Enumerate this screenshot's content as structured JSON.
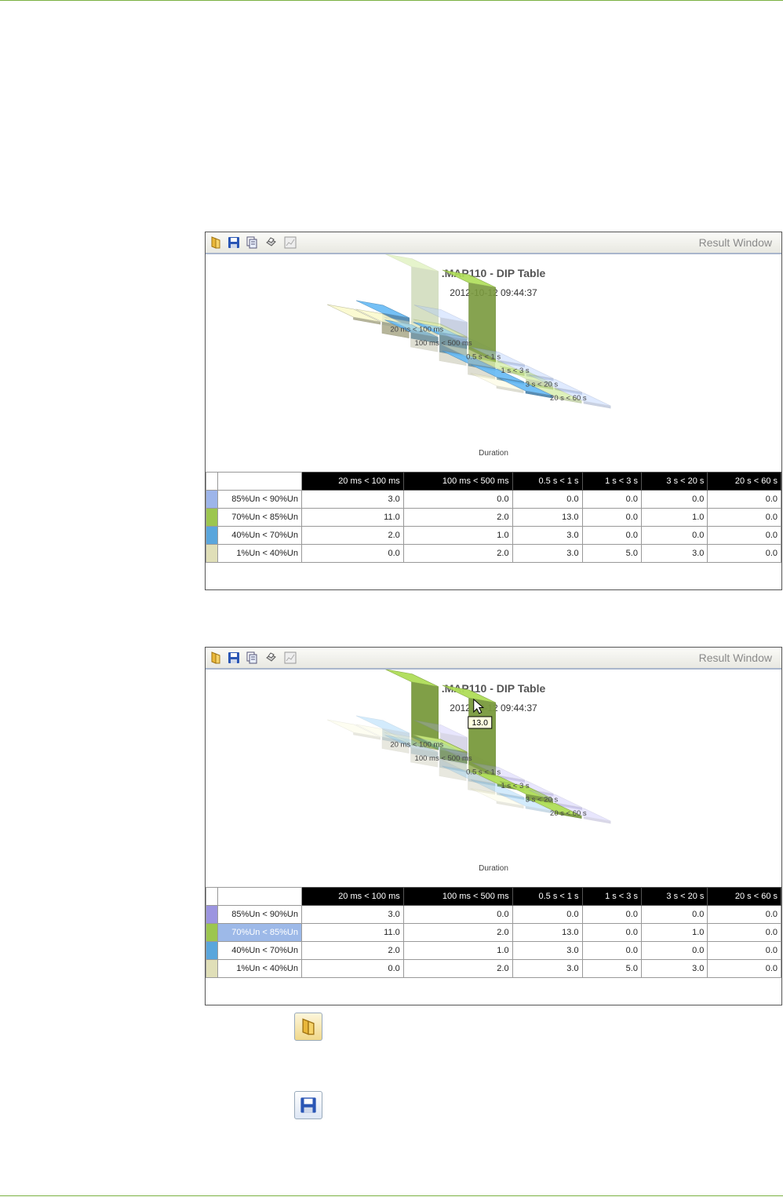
{
  "windows": [
    {
      "toolbar": {
        "title": "Result Window",
        "icons": [
          "open-icon",
          "save-icon",
          "copy-icon",
          "print-icon",
          "export-icon"
        ]
      },
      "chart": {
        "title": ".MAP110 - DIP Table",
        "subtitle": "2012-10-12 09:44:37",
        "axis_label": "Duration",
        "tooltip": ""
      },
      "table": {
        "headers": [
          "20 ms < 100 ms",
          "100 ms < 500 ms",
          "0.5 s < 1 s",
          "1 s < 3 s",
          "3 s < 20 s",
          "20 s < 60 s"
        ],
        "rows": [
          {
            "label": "85%Un < 90%Un",
            "swatch": "#9db5ea",
            "values": [
              "3.0",
              "0.0",
              "0.0",
              "0.0",
              "0.0",
              "0.0"
            ]
          },
          {
            "label": "70%Un < 85%Un",
            "swatch": "#9cc64f",
            "values": [
              "11.0",
              "2.0",
              "13.0",
              "0.0",
              "1.0",
              "0.0"
            ]
          },
          {
            "label": "40%Un < 70%Un",
            "swatch": "#5aa6dc",
            "values": [
              "2.0",
              "1.0",
              "3.0",
              "0.0",
              "0.0",
              "0.0"
            ]
          },
          {
            "label": "1%Un < 40%Un",
            "swatch": "#e0dfb8",
            "values": [
              "0.0",
              "2.0",
              "3.0",
              "5.0",
              "3.0",
              "0.0"
            ]
          }
        ],
        "selected_row": -1
      }
    },
    {
      "toolbar": {
        "title": "Result Window",
        "icons": [
          "open-icon",
          "save-icon",
          "copy-icon",
          "print-icon",
          "export-icon"
        ]
      },
      "chart": {
        "title": ".MAP110 - DIP Table",
        "subtitle": "2012-10-12 09:44:37",
        "axis_label": "Duration",
        "tooltip": "13.0"
      },
      "table": {
        "headers": [
          "20 ms < 100 ms",
          "100 ms < 500 ms",
          "0.5 s < 1 s",
          "1 s < 3 s",
          "3 s < 20 s",
          "20 s < 60 s"
        ],
        "rows": [
          {
            "label": "85%Un < 90%Un",
            "swatch": "#9c95e0",
            "values": [
              "3.0",
              "0.0",
              "0.0",
              "0.0",
              "0.0",
              "0.0"
            ]
          },
          {
            "label": "70%Un < 85%Un",
            "swatch": "#9cc64f",
            "values": [
              "11.0",
              "2.0",
              "13.0",
              "0.0",
              "1.0",
              "0.0"
            ]
          },
          {
            "label": "40%Un < 70%Un",
            "swatch": "#5aa6dc",
            "values": [
              "2.0",
              "1.0",
              "3.0",
              "0.0",
              "0.0",
              "0.0"
            ]
          },
          {
            "label": "1%Un < 40%Un",
            "swatch": "#e0dfb8",
            "values": [
              "0.0",
              "2.0",
              "3.0",
              "5.0",
              "3.0",
              "0.0"
            ]
          }
        ],
        "selected_row": 1
      }
    }
  ],
  "chart_data": [
    {
      "type": "bar",
      "title": ".MAP110 - DIP Table",
      "subtitle": "2012-10-12 09:44:37",
      "xlabel": "Duration",
      "categories": [
        "20 ms < 100 ms",
        "100 ms < 500 ms",
        "0.5 s < 1 s",
        "1 s < 3 s",
        "3 s < 20 s",
        "20 s < 60 s"
      ],
      "series": [
        {
          "name": "85%Un < 90%Un",
          "values": [
            3.0,
            0.0,
            0.0,
            0.0,
            0.0,
            0.0
          ]
        },
        {
          "name": "70%Un < 85%Un",
          "values": [
            11.0,
            2.0,
            13.0,
            0.0,
            1.0,
            0.0
          ]
        },
        {
          "name": "40%Un < 70%Un",
          "values": [
            2.0,
            1.0,
            3.0,
            0.0,
            0.0,
            0.0
          ]
        },
        {
          "name": "1%Un < 40%Un",
          "values": [
            0.0,
            2.0,
            3.0,
            5.0,
            3.0,
            0.0
          ]
        }
      ],
      "highlight_series": -1
    },
    {
      "type": "bar",
      "title": ".MAP110 - DIP Table",
      "subtitle": "2012-10-12 09:44:37",
      "xlabel": "Duration",
      "categories": [
        "20 ms < 100 ms",
        "100 ms < 500 ms",
        "0.5 s < 1 s",
        "1 s < 3 s",
        "3 s < 20 s",
        "20 s < 60 s"
      ],
      "series": [
        {
          "name": "85%Un < 90%Un",
          "values": [
            3.0,
            0.0,
            0.0,
            0.0,
            0.0,
            0.0
          ]
        },
        {
          "name": "70%Un < 85%Un",
          "values": [
            11.0,
            2.0,
            13.0,
            0.0,
            1.0,
            0.0
          ]
        },
        {
          "name": "40%Un < 70%Un",
          "values": [
            2.0,
            1.0,
            3.0,
            0.0,
            0.0,
            0.0
          ]
        },
        {
          "name": "1%Un < 40%Un",
          "values": [
            0.0,
            2.0,
            3.0,
            5.0,
            3.0,
            0.0
          ]
        }
      ],
      "highlight_series": 1
    }
  ],
  "bottom_icons": [
    "open-icon",
    "save-icon"
  ]
}
